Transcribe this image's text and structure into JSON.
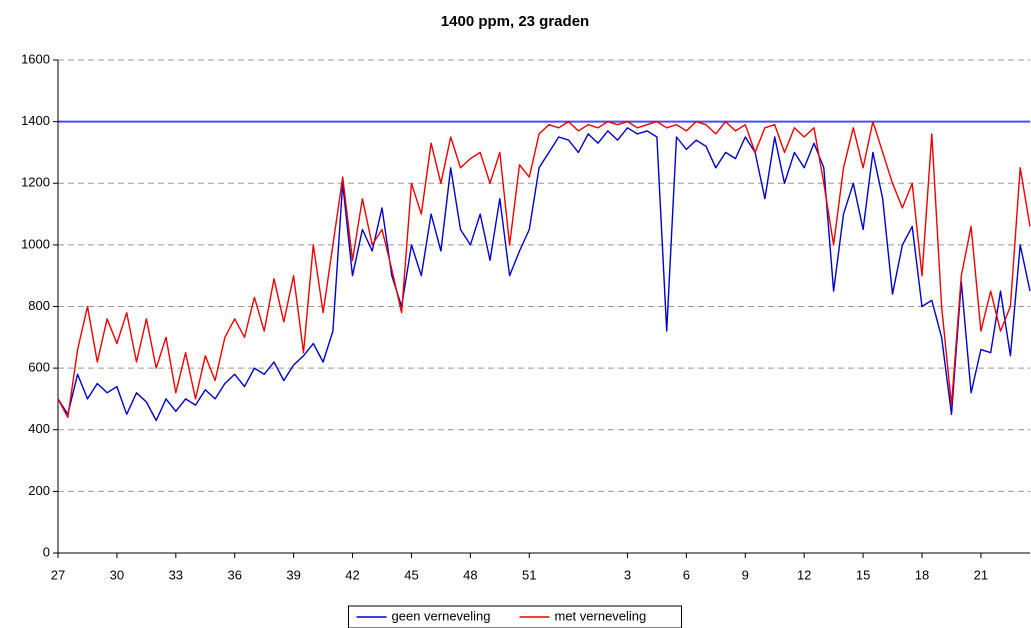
{
  "chart_data": {
    "type": "line",
    "title": "1400 ppm, 23 graden",
    "categories": [
      "27",
      null,
      null,
      null,
      null,
      null,
      "30",
      null,
      null,
      null,
      null,
      null,
      "33",
      null,
      null,
      null,
      null,
      null,
      "36",
      null,
      null,
      null,
      null,
      null,
      "39",
      null,
      null,
      null,
      null,
      null,
      "42",
      null,
      null,
      null,
      null,
      null,
      "45",
      null,
      null,
      null,
      null,
      null,
      "48",
      null,
      null,
      null,
      null,
      null,
      "51",
      null,
      null,
      null,
      null,
      null,
      null,
      null,
      null,
      null,
      "3",
      null,
      null,
      null,
      null,
      null,
      "6",
      null,
      null,
      null,
      null,
      null,
      "9",
      null,
      null,
      null,
      null,
      null,
      "12",
      null,
      null,
      null,
      null,
      null,
      "15",
      null,
      null,
      null,
      null,
      null,
      "18",
      null,
      null,
      null,
      null,
      null,
      "21",
      null,
      null,
      null,
      null,
      null
    ],
    "series": [
      {
        "name": "geen verneveling",
        "color": "#0000cc",
        "values": [
          500,
          450,
          580,
          500,
          550,
          520,
          540,
          450,
          520,
          490,
          430,
          500,
          460,
          500,
          480,
          530,
          500,
          550,
          580,
          540,
          600,
          580,
          620,
          560,
          610,
          640,
          680,
          620,
          720,
          1200,
          900,
          1050,
          980,
          1120,
          900,
          800,
          1000,
          900,
          1100,
          980,
          1250,
          1050,
          1000,
          1100,
          950,
          1150,
          900,
          980,
          1050,
          1250,
          1300,
          1350,
          1340,
          1300,
          1360,
          1330,
          1370,
          1340,
          1380,
          1360,
          1370,
          1350,
          720,
          1350,
          1310,
          1340,
          1320,
          1250,
          1300,
          1280,
          1350,
          1300,
          1150,
          1350,
          1200,
          1300,
          1250,
          1330,
          1250,
          850,
          1100,
          1200,
          1050,
          1300,
          1150,
          840,
          1000,
          1060,
          800,
          820,
          700,
          450,
          880,
          520,
          660,
          650,
          850,
          640,
          1000,
          850
        ]
      },
      {
        "name": "met verneveling",
        "color": "#ee0000",
        "values": [
          500,
          440,
          660,
          800,
          620,
          760,
          680,
          780,
          620,
          760,
          600,
          700,
          520,
          650,
          500,
          640,
          560,
          700,
          760,
          700,
          830,
          720,
          890,
          750,
          900,
          650,
          1000,
          780,
          1000,
          1220,
          950,
          1150,
          1000,
          1050,
          920,
          780,
          1200,
          1100,
          1330,
          1200,
          1350,
          1250,
          1280,
          1300,
          1200,
          1300,
          1000,
          1260,
          1220,
          1360,
          1390,
          1380,
          1400,
          1370,
          1390,
          1380,
          1400,
          1390,
          1400,
          1380,
          1390,
          1400,
          1380,
          1390,
          1370,
          1400,
          1390,
          1360,
          1400,
          1370,
          1390,
          1300,
          1380,
          1390,
          1300,
          1380,
          1350,
          1380,
          1200,
          1000,
          1250,
          1380,
          1250,
          1400,
          1300,
          1200,
          1120,
          1200,
          900,
          1360,
          800,
          480,
          900,
          1060,
          720,
          850,
          720,
          800,
          1250,
          1060
        ]
      }
    ],
    "reference_line": {
      "value": 1400,
      "color": "#4a4aff"
    },
    "ylim": [
      0,
      1600
    ],
    "yticks": [
      0,
      200,
      400,
      600,
      800,
      1000,
      1200,
      1400,
      1600
    ],
    "grid": true,
    "legend": "bottom"
  }
}
